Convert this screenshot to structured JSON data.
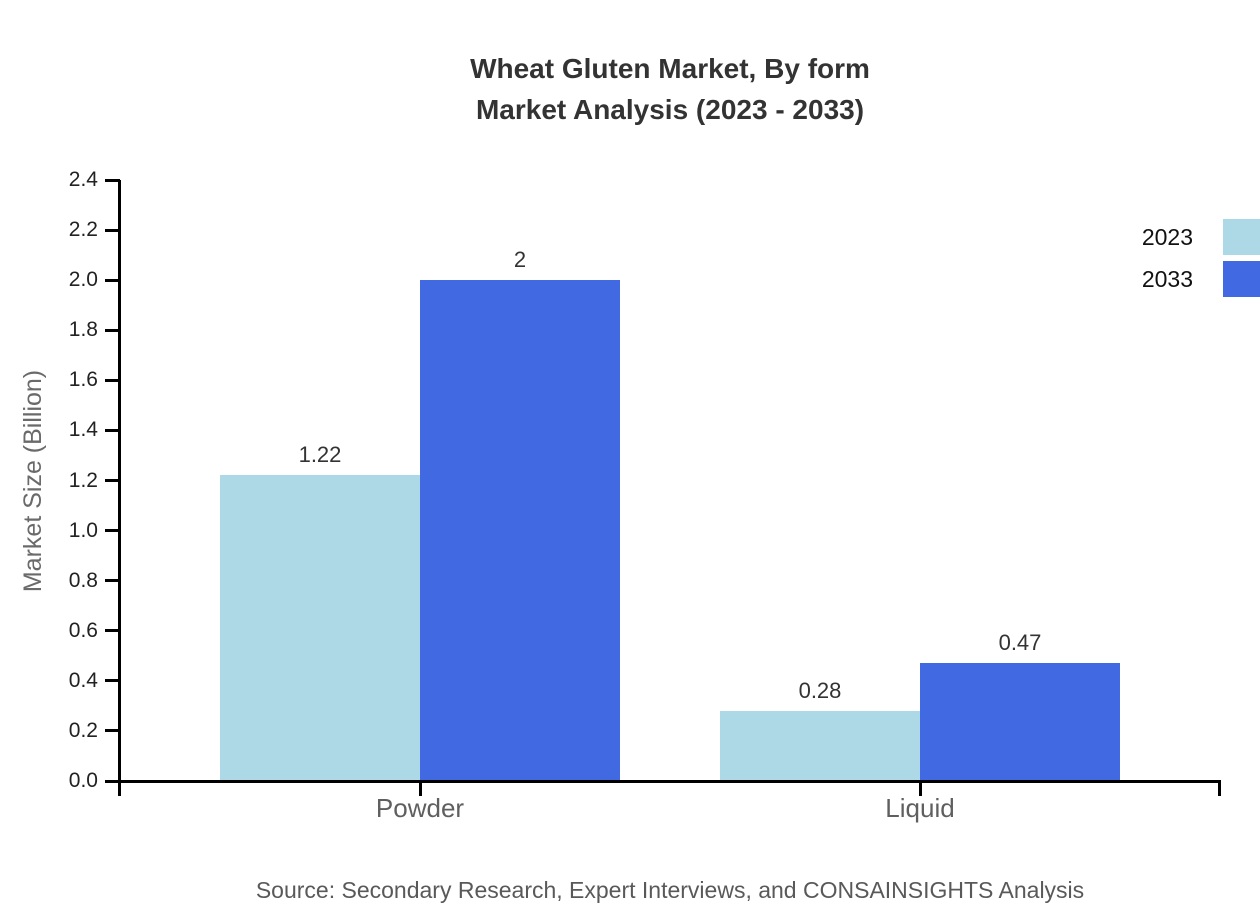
{
  "title": {
    "line1": "Wheat Gluten Market, By form",
    "line2": "Market Analysis (2023 - 2033)"
  },
  "chart_data": {
    "type": "bar",
    "title": "Wheat Gluten Market, By form Market Analysis (2023 - 2033)",
    "categories": [
      "Powder",
      "Liquid"
    ],
    "series": [
      {
        "name": "2023",
        "color": "#ADD8E6",
        "values": [
          1.22,
          0.28
        ],
        "labels": [
          "1.22",
          "0.28"
        ]
      },
      {
        "name": "2033",
        "color": "#4169E1",
        "values": [
          2,
          0.47
        ],
        "labels": [
          "2",
          "0.47"
        ]
      }
    ],
    "xlabel": "",
    "ylabel": "Market Size (Billion)",
    "ylim": [
      0,
      2.4
    ],
    "ytick_step": 0.2,
    "grid": false,
    "legend_position": "top-right"
  },
  "source_note": "Source: Secondary Research, Expert Interviews, and CONSAINSIGHTS Analysis",
  "colors": {
    "axis": "#000000",
    "title_text": "#333333",
    "tick_text": "#222222",
    "value_label_text": "#333333",
    "category_text": "#5f5f5f",
    "y_axis_title_text": "#6a6a6a",
    "legend_text": "#111111",
    "source_text": "#595959"
  }
}
